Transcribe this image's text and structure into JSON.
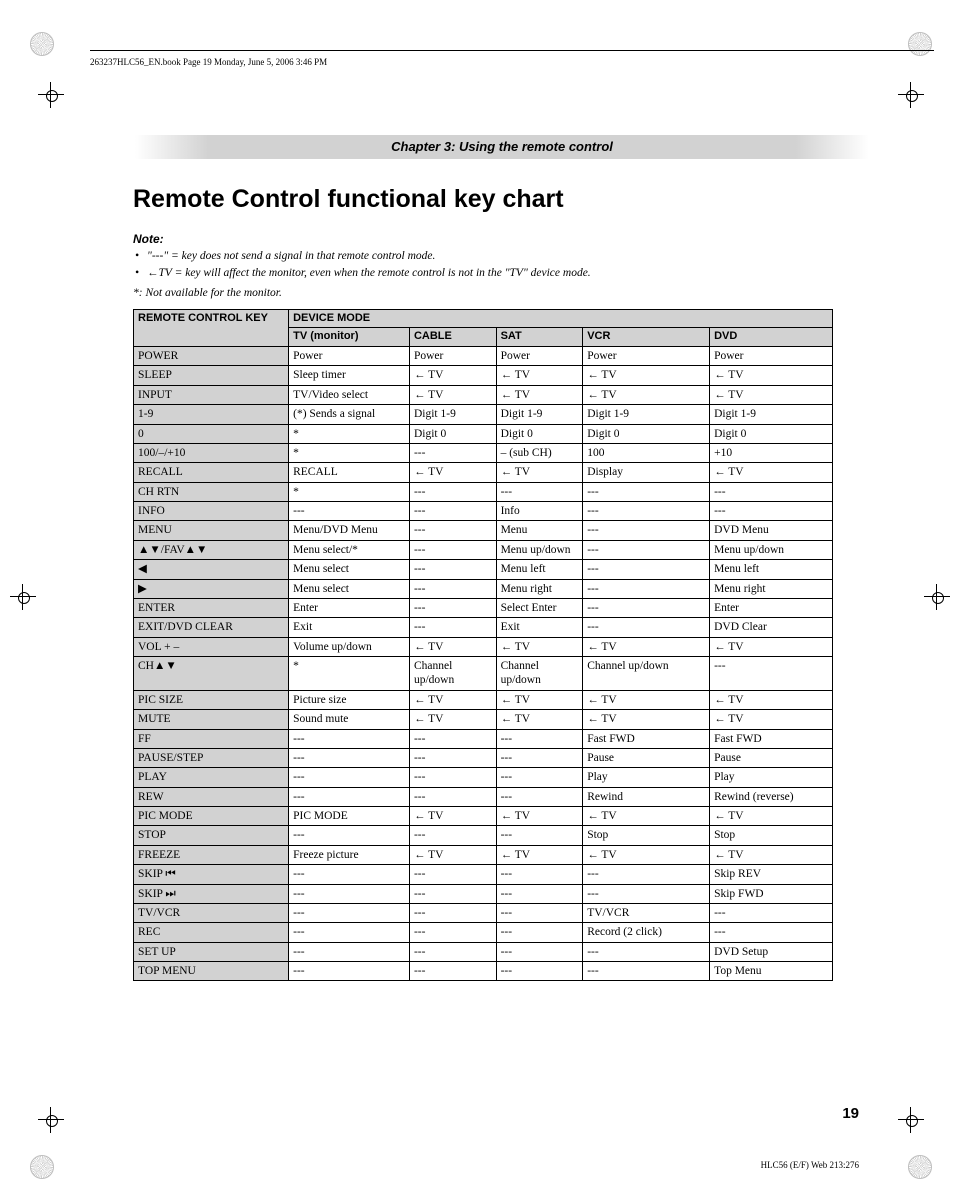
{
  "header_line": "263237HLC56_EN.book  Page 19  Monday, June 5, 2006  3:46 PM",
  "chapter_banner": "Chapter 3: Using the remote control",
  "title": "Remote Control functional key chart",
  "note_head": "Note:",
  "note_items": [
    "\"---\" = key does not send a signal in that remote control mode.",
    "←TV = key will affect the monitor, even when the remote control is not in the \"TV\" device mode."
  ],
  "note_extra": "*: Not available for the monitor.",
  "columns": {
    "key_header": "REMOTE CONTROL KEY",
    "group_header": "DEVICE MODE",
    "modes": [
      "TV (monitor)",
      "CABLE",
      "SAT",
      "VCR",
      "DVD"
    ]
  },
  "rows": [
    {
      "key": "POWER",
      "cells": [
        "Power",
        "Power",
        "Power",
        "Power",
        "Power"
      ]
    },
    {
      "key": "SLEEP",
      "cells": [
        "Sleep timer",
        "← TV",
        "← TV",
        "← TV",
        "← TV"
      ]
    },
    {
      "key": "INPUT",
      "cells": [
        "TV/Video select",
        "← TV",
        "← TV",
        "← TV",
        "← TV"
      ]
    },
    {
      "key": "1-9",
      "cells": [
        "(*) Sends a signal",
        "Digit 1-9",
        "Digit 1-9",
        "Digit 1-9",
        "Digit 1-9"
      ]
    },
    {
      "key": "0",
      "cells": [
        "*",
        "Digit 0",
        "Digit 0",
        "Digit 0",
        "Digit 0"
      ]
    },
    {
      "key": "100/–/+10",
      "cells": [
        "*",
        "---",
        "– (sub CH)",
        "100",
        "+10"
      ]
    },
    {
      "key": "RECALL",
      "cells": [
        "RECALL",
        "← TV",
        "← TV",
        "Display",
        "← TV"
      ]
    },
    {
      "key": "CH RTN",
      "cells": [
        "*",
        "---",
        "---",
        "---",
        "---"
      ]
    },
    {
      "key": "INFO",
      "cells": [
        "---",
        "---",
        "Info",
        "---",
        "---"
      ]
    },
    {
      "key": "MENU",
      "cells": [
        "Menu/DVD Menu",
        "---",
        "Menu",
        "---",
        "DVD Menu"
      ]
    },
    {
      "key": "▲▼/FAV▲▼",
      "cells": [
        "Menu select/*",
        "---",
        "Menu up/down",
        "---",
        "Menu up/down"
      ]
    },
    {
      "key": "◀",
      "cells": [
        "Menu select",
        "---",
        "Menu left",
        "---",
        "Menu left"
      ]
    },
    {
      "key": "▶",
      "cells": [
        "Menu select",
        "---",
        "Menu right",
        "---",
        "Menu right"
      ]
    },
    {
      "key": "ENTER",
      "cells": [
        "Enter",
        "---",
        "Select Enter",
        "---",
        "Enter"
      ]
    },
    {
      "key": "EXIT/DVD CLEAR",
      "cells": [
        "Exit",
        "---",
        "Exit",
        "---",
        "DVD Clear"
      ]
    },
    {
      "key": "VOL + –",
      "cells": [
        "Volume up/down",
        "← TV",
        "← TV",
        "← TV",
        "← TV"
      ]
    },
    {
      "key": "CH▲▼",
      "cells": [
        "*",
        "Channel up/down",
        "Channel up/down",
        "Channel up/down",
        "---"
      ]
    },
    {
      "key": "PIC SIZE",
      "cells": [
        "Picture size",
        "← TV",
        "← TV",
        "← TV",
        "← TV"
      ]
    },
    {
      "key": "MUTE",
      "cells": [
        "Sound mute",
        "← TV",
        "← TV",
        "← TV",
        "← TV"
      ]
    },
    {
      "key": "FF",
      "cells": [
        "---",
        "---",
        "---",
        "Fast FWD",
        "Fast FWD"
      ]
    },
    {
      "key": "PAUSE/STEP",
      "cells": [
        "---",
        "---",
        "---",
        "Pause",
        "Pause"
      ]
    },
    {
      "key": "PLAY",
      "cells": [
        "---",
        "---",
        "---",
        "Play",
        "Play"
      ]
    },
    {
      "key": "REW",
      "cells": [
        "---",
        "---",
        "---",
        "Rewind",
        "Rewind (reverse)"
      ]
    },
    {
      "key": "PIC MODE",
      "cells": [
        "PIC MODE",
        "← TV",
        "← TV",
        "← TV",
        "← TV"
      ]
    },
    {
      "key": "STOP",
      "cells": [
        "---",
        "---",
        "---",
        "Stop",
        "Stop"
      ]
    },
    {
      "key": "FREEZE",
      "cells": [
        "Freeze picture",
        "← TV",
        "← TV",
        "← TV",
        "← TV"
      ]
    },
    {
      "key": "SKIP ⏮",
      "cells": [
        "---",
        "---",
        "---",
        "---",
        "Skip REV"
      ]
    },
    {
      "key": "SKIP ⏭",
      "cells": [
        "---",
        "---",
        "---",
        "---",
        "Skip FWD"
      ]
    },
    {
      "key": "TV/VCR",
      "cells": [
        "---",
        "---",
        "---",
        "TV/VCR",
        "---"
      ]
    },
    {
      "key": "REC",
      "cells": [
        "---",
        "---",
        "---",
        "Record (2 click)",
        "---"
      ]
    },
    {
      "key": "SET UP",
      "cells": [
        "---",
        "---",
        "---",
        "---",
        "DVD Setup"
      ]
    },
    {
      "key": "TOP MENU",
      "cells": [
        "---",
        "---",
        "---",
        "---",
        "Top Menu"
      ]
    }
  ],
  "page_number": "19",
  "footer": "HLC56 (E/F) Web 213:276"
}
